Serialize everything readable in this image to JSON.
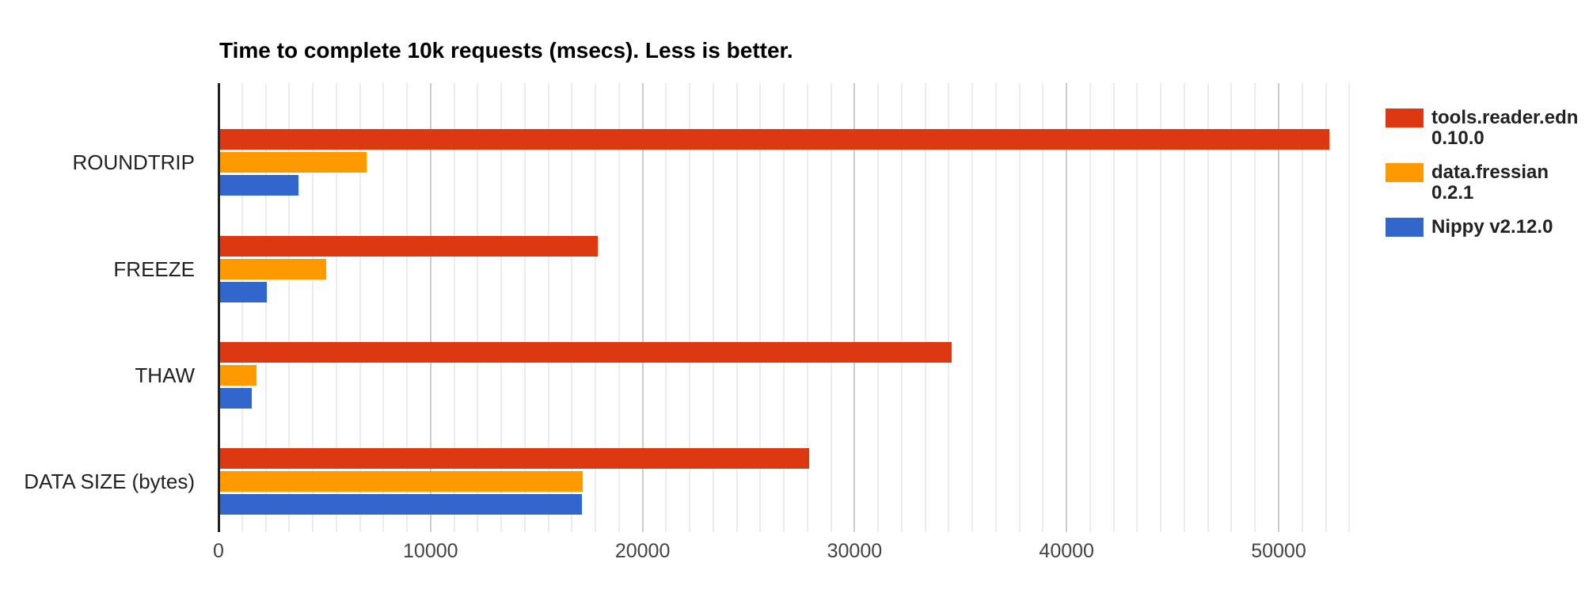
{
  "chart_data": {
    "type": "bar",
    "orientation": "horizontal",
    "title": "Time to complete 10k requests (msecs). Less is better.",
    "xlabel": "",
    "ylabel": "",
    "categories": [
      "ROUNDTRIP",
      "FREEZE",
      "THAW",
      "DATA SIZE (bytes)"
    ],
    "series": [
      {
        "name": "tools.reader.edn 0.10.0",
        "label_lines": [
          "tools.reader.edn",
          "0.10.0"
        ],
        "color": "#dc3912",
        "values": [
          52300,
          17800,
          34500,
          27800
        ]
      },
      {
        "name": "data.fressian 0.2.1",
        "label_lines": [
          "data.fressian",
          "0.2.1"
        ],
        "color": "#ff9900",
        "values": [
          6900,
          5000,
          1700,
          17100
        ]
      },
      {
        "name": "Nippy v2.12.0",
        "label_lines": [
          "Nippy v2.12.0"
        ],
        "color": "#3366cc",
        "values": [
          3700,
          2200,
          1500,
          17050
        ]
      }
    ],
    "x_ticks": [
      0,
      10000,
      20000,
      30000,
      40000,
      50000
    ],
    "x_tick_labels": [
      "0",
      "10000",
      "20000",
      "30000",
      "40000",
      "50000"
    ],
    "xlim": [
      0,
      54444
    ],
    "minor_gridline_interval": 1111.11,
    "gridline_max": 53333,
    "grid": true,
    "legend_position": "right"
  },
  "colors": {
    "background": "#ffffff",
    "axis_line": "#212121",
    "major_gridline": "#cccccc",
    "minor_gridline": "#ececec",
    "title_text": "#000000",
    "category_text": "#222222",
    "tick_text": "#444444",
    "legend_text": "#222222"
  }
}
